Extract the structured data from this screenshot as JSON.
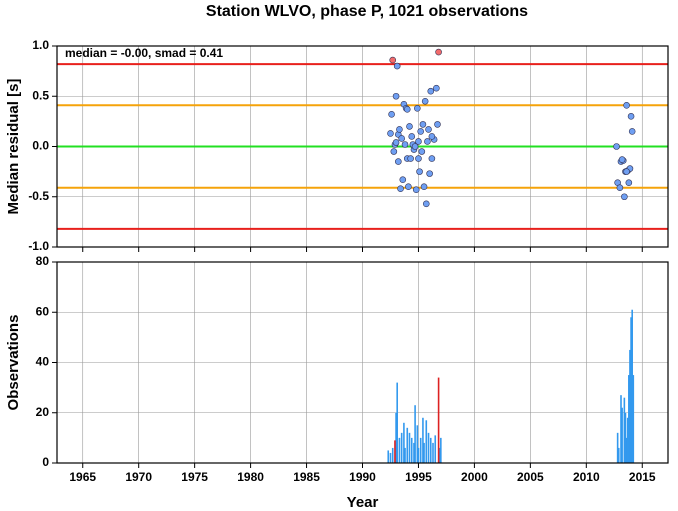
{
  "chart_data": [
    {
      "type": "scatter",
      "title": "Station WLVO, phase P, 1021 observations",
      "annotation": "median = -0.00, smad = 0.41",
      "ylabel": "Median residual [s]",
      "xlim": [
        1962.7,
        2017.3
      ],
      "xticks": [
        1965,
        1970,
        1975,
        1980,
        1985,
        1990,
        1995,
        2000,
        2005,
        2010,
        2015
      ],
      "ylim": [
        -1,
        1
      ],
      "yticks": [
        {
          "value": 1,
          "label": "1.0"
        },
        0.5,
        {
          "value": 0,
          "label": "0.0"
        },
        -0.5,
        {
          "value": -1,
          "label": "-1.0"
        }
      ],
      "grid": true,
      "reference_lines": [
        {
          "value": 0.82,
          "color": "#e8201c"
        },
        {
          "value": -0.82,
          "color": "#e8201c"
        },
        {
          "value": 0.41,
          "color": "#f5a30a"
        },
        {
          "value": -0.41,
          "color": "#f5a30a"
        },
        {
          "value": 0,
          "color": "#22e022"
        }
      ],
      "series": [
        {
          "color": "#6f9ff2",
          "x": [
            1992.5,
            1992.6,
            1992.8,
            1992.9,
            1993.0,
            1993.1,
            1993.2,
            1993.3,
            1993.4,
            1993.5,
            1993.6,
            1993.7,
            1993.8,
            1993.9,
            1994.0,
            1994.1,
            1994.2,
            1994.3,
            1994.4,
            1994.5,
            1994.6,
            1994.7,
            1994.8,
            1994.9,
            1995.0,
            1995.1,
            1995.2,
            1995.3,
            1995.4,
            1995.5,
            1995.6,
            1995.7,
            1995.8,
            1995.9,
            1996.0,
            1996.1,
            1996.2,
            1996.4,
            1996.6,
            1996.7,
            1993.0,
            1993.2,
            1994.0,
            1995.0,
            1996.2,
            2012.7,
            2012.8,
            2013.0,
            2013.1,
            2013.3,
            2013.4,
            2013.5,
            2013.6,
            2013.7,
            2013.8,
            2013.9,
            2014.0,
            2014.1,
            2013.2,
            2013.6
          ],
          "y": [
            0.13,
            0.32,
            -0.05,
            0.02,
            0.5,
            0.8,
            0.12,
            0.17,
            -0.42,
            0.08,
            -0.33,
            0.42,
            0.02,
            0.38,
            -0.12,
            -0.4,
            0.2,
            -0.12,
            0.1,
            0.02,
            -0.03,
            0,
            -0.43,
            0.38,
            0.05,
            -0.25,
            0.15,
            -0.05,
            0.22,
            -0.4,
            0.45,
            -0.57,
            0.05,
            0.17,
            -0.27,
            0.55,
            -0.12,
            0.07,
            0.58,
            0.22,
            0.04,
            -0.15,
            0.37,
            -0.12,
            0.1,
            0,
            -0.36,
            -0.41,
            -0.15,
            -0.14,
            -0.5,
            -0.25,
            0.41,
            -0.24,
            -0.36,
            -0.22,
            0.3,
            0.15,
            -0.13,
            -0.25
          ]
        },
        {
          "color": "#f26b6b",
          "x": [
            1992.7,
            1996.8
          ],
          "y": [
            0.86,
            0.94
          ]
        }
      ]
    },
    {
      "type": "bar",
      "xlabel": "Year",
      "ylabel": "Observations",
      "xlim": [
        1962.7,
        2017.3
      ],
      "xticks": [
        1965,
        1970,
        1975,
        1980,
        1985,
        1990,
        1995,
        2000,
        2005,
        2010,
        2015
      ],
      "ylim": [
        0,
        80
      ],
      "yticks": [
        0,
        20,
        40,
        60,
        80
      ],
      "grid": true,
      "series": [
        {
          "color": "#3399ee",
          "x": [
            1992.3,
            1992.5,
            1992.7,
            1993.0,
            1993.1,
            1993.3,
            1993.5,
            1993.7,
            1993.8,
            1994.0,
            1994.2,
            1994.4,
            1994.6,
            1994.7,
            1994.9,
            1995.0,
            1995.2,
            1995.4,
            1995.5,
            1995.7,
            1995.9,
            1996.1,
            1996.3,
            1996.5,
            1996.9,
            1997.0,
            2012.8,
            2012.9,
            2013.1,
            2013.2,
            2013.4,
            2013.5,
            2013.6,
            2013.7,
            2013.8,
            2013.9,
            2014.0,
            2014.1,
            2014.2
          ],
          "values": [
            5,
            4,
            6,
            20,
            32,
            10,
            12,
            16,
            6,
            14,
            12,
            10,
            8,
            23,
            15,
            6,
            10,
            18,
            8,
            17,
            12,
            10,
            8,
            11,
            6,
            10,
            12,
            6,
            27,
            22,
            26,
            20,
            10,
            18,
            35,
            45,
            58,
            61,
            35
          ]
        },
        {
          "color": "#dd2222",
          "x": [
            1992.9,
            1996.8
          ],
          "values": [
            9,
            34
          ]
        }
      ]
    }
  ]
}
